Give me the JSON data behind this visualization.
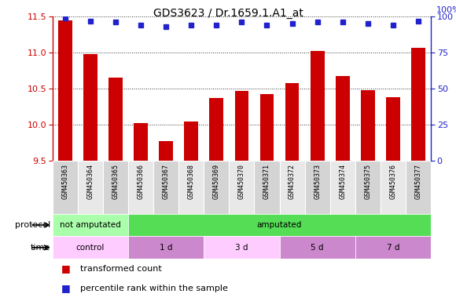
{
  "title": "GDS3623 / Dr.1659.1.A1_at",
  "samples": [
    "GSM450363",
    "GSM450364",
    "GSM450365",
    "GSM450366",
    "GSM450367",
    "GSM450368",
    "GSM450369",
    "GSM450370",
    "GSM450371",
    "GSM450372",
    "GSM450373",
    "GSM450374",
    "GSM450375",
    "GSM450376",
    "GSM450377"
  ],
  "bar_values": [
    11.45,
    10.98,
    10.65,
    10.03,
    9.78,
    10.05,
    10.37,
    10.47,
    10.43,
    10.58,
    11.02,
    10.68,
    10.48,
    10.38,
    11.07
  ],
  "dot_values": [
    99,
    97,
    96,
    94,
    93,
    94,
    94,
    96,
    94,
    95,
    96,
    96,
    95,
    94,
    97
  ],
  "ylim_left": [
    9.5,
    11.5
  ],
  "ylim_right": [
    0,
    100
  ],
  "yticks_left": [
    9.5,
    10.0,
    10.5,
    11.0,
    11.5
  ],
  "yticks_right": [
    0,
    25,
    50,
    75,
    100
  ],
  "bar_color": "#cc0000",
  "dot_color": "#2222cc",
  "bar_bottom": 9.5,
  "col_bg_even": "#d4d4d4",
  "col_bg_odd": "#e8e8e8",
  "protocol_bands": [
    {
      "text": "not amputated",
      "start": 0,
      "end": 3,
      "color": "#aaffaa"
    },
    {
      "text": "amputated",
      "start": 3,
      "end": 15,
      "color": "#55dd55"
    }
  ],
  "time_bands": [
    {
      "text": "control",
      "start": 0,
      "end": 3,
      "color": "#ffccff"
    },
    {
      "text": "1 d",
      "start": 3,
      "end": 6,
      "color": "#cc88cc"
    },
    {
      "text": "3 d",
      "start": 6,
      "end": 9,
      "color": "#ffccff"
    },
    {
      "text": "5 d",
      "start": 9,
      "end": 12,
      "color": "#cc88cc"
    },
    {
      "text": "7 d",
      "start": 12,
      "end": 15,
      "color": "#cc88cc"
    }
  ],
  "legend": [
    {
      "label": "transformed count",
      "color": "#cc0000"
    },
    {
      "label": "percentile rank within the sample",
      "color": "#2222cc"
    }
  ],
  "left_axis_color": "#cc0000",
  "right_axis_color": "#2222cc",
  "grid_color": "#333333",
  "right_label": "100%"
}
